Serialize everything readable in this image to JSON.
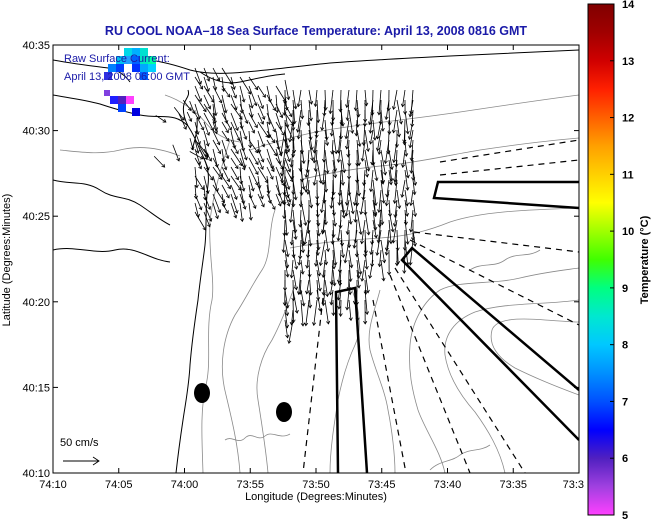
{
  "title": "RU COOL  NOAA–18  Sea Surface Temperature:  April 13, 2008 0816 GMT",
  "legend": {
    "line1": "Raw Surface Current:",
    "line2": "April 13, 2008 06:00 GMT",
    "scale_label": "50 cm/s"
  },
  "axes": {
    "xlabel": "Longitude (Degrees:Minutes)",
    "ylabel": "Latitude (Degrees:Minutes)",
    "x_ticks": [
      "74:10",
      "74:05",
      "74:00",
      "73:55",
      "73:50",
      "73:45",
      "73:40",
      "73:35",
      "73:3"
    ],
    "y_ticks": [
      "40:35",
      "40:30",
      "40:25",
      "40:20",
      "40:15",
      "40:10"
    ]
  },
  "colorbar": {
    "label": "Temperature (°C)",
    "ticks": [
      "14",
      "13",
      "12",
      "11",
      "10",
      "9",
      "8",
      "7",
      "6",
      "5"
    ],
    "min": 5,
    "max": 14,
    "colors": [
      "#ff40ff",
      "#a040e0",
      "#5020c0",
      "#0000ff",
      "#0050ff",
      "#0090ff",
      "#00c8ff",
      "#00e8d0",
      "#00ff80",
      "#40ff00",
      "#a0ff00",
      "#ffff00",
      "#ffd000",
      "#ffa000",
      "#ff6000",
      "#ff2000",
      "#d00000",
      "#a00000",
      "#800000"
    ]
  },
  "colors": {
    "title": "#1a1aa8",
    "coast": "#000000",
    "bathymetry": "#8a8a8a"
  }
}
